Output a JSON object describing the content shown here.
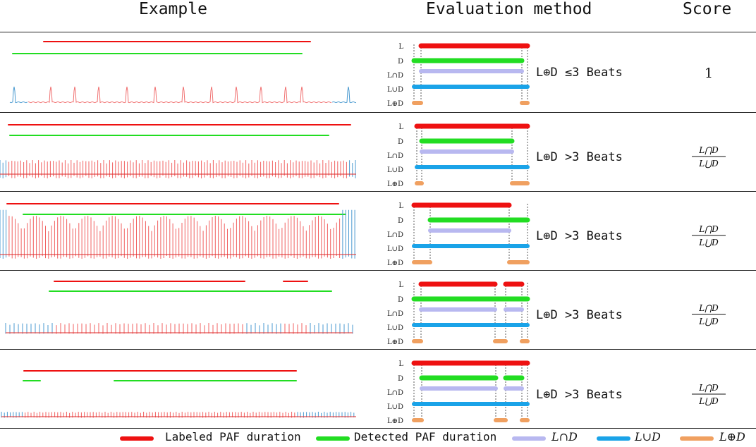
{
  "header": {
    "example": "Example",
    "evaluation": "Evaluation method",
    "score": "Score"
  },
  "row_labels": [
    "L",
    "D",
    "L∩D",
    "L∪D",
    "L⊕D"
  ],
  "rows": [
    {
      "condition": "L⊕D ≤3 Beats",
      "score": "1",
      "fractional_score": false
    },
    {
      "condition": "L⊕D >3 Beats",
      "score": "",
      "fractional_score": true
    },
    {
      "condition": "L⊕D >3 Beats",
      "score": "",
      "fractional_score": true
    },
    {
      "condition": "L⊕D >3 Beats",
      "score": "",
      "fractional_score": true
    },
    {
      "condition": "L⊕D >3 Beats",
      "score": "",
      "fractional_score": true
    }
  ],
  "score_formula": {
    "numerator": "L⋂D",
    "denominator": "L⋃D"
  },
  "legend": [
    {
      "label": "Labeled PAF duration",
      "color": "#ee1111"
    },
    {
      "label": "Detected PAF duration",
      "color": "#22dd22"
    },
    {
      "label": "L∩D",
      "color": "#b8b8f0"
    },
    {
      "label": "L∪D",
      "color": "#1aa3e8"
    },
    {
      "label": "L⊕D",
      "color": "#f0a060"
    }
  ]
}
